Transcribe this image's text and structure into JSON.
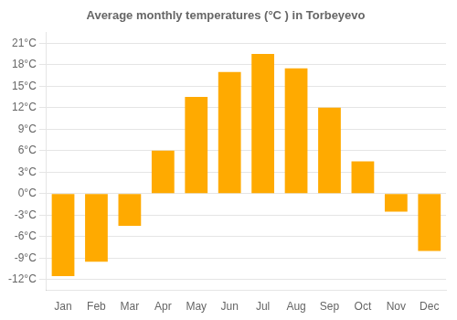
{
  "chart_data": {
    "type": "bar",
    "title": "Average monthly temperatures (°C ) in Torbeyevo",
    "categories": [
      "Jan",
      "Feb",
      "Mar",
      "Apr",
      "May",
      "Jun",
      "Jul",
      "Aug",
      "Sep",
      "Oct",
      "Nov",
      "Dec"
    ],
    "values": [
      -11.5,
      -9.5,
      -4.5,
      6.0,
      13.5,
      17.0,
      19.5,
      17.5,
      12.0,
      4.5,
      -2.5,
      -8.0
    ],
    "color": "#FFAA00",
    "ylim": [
      -13.5,
      22.5
    ],
    "yticks": [
      {
        "value": -12,
        "label": "-12°C"
      },
      {
        "value": -9,
        "label": "-9°C"
      },
      {
        "value": -6,
        "label": "-6°C"
      },
      {
        "value": -3,
        "label": "-3°C"
      },
      {
        "value": 0,
        "label": "0°C"
      },
      {
        "value": 3,
        "label": "3°C"
      },
      {
        "value": 6,
        "label": "6°C"
      },
      {
        "value": 9,
        "label": "9°C"
      },
      {
        "value": 12,
        "label": "12°C"
      },
      {
        "value": 15,
        "label": "15°C"
      },
      {
        "value": 18,
        "label": "18°C"
      },
      {
        "value": 21,
        "label": "21°C"
      }
    ],
    "grid": true
  }
}
